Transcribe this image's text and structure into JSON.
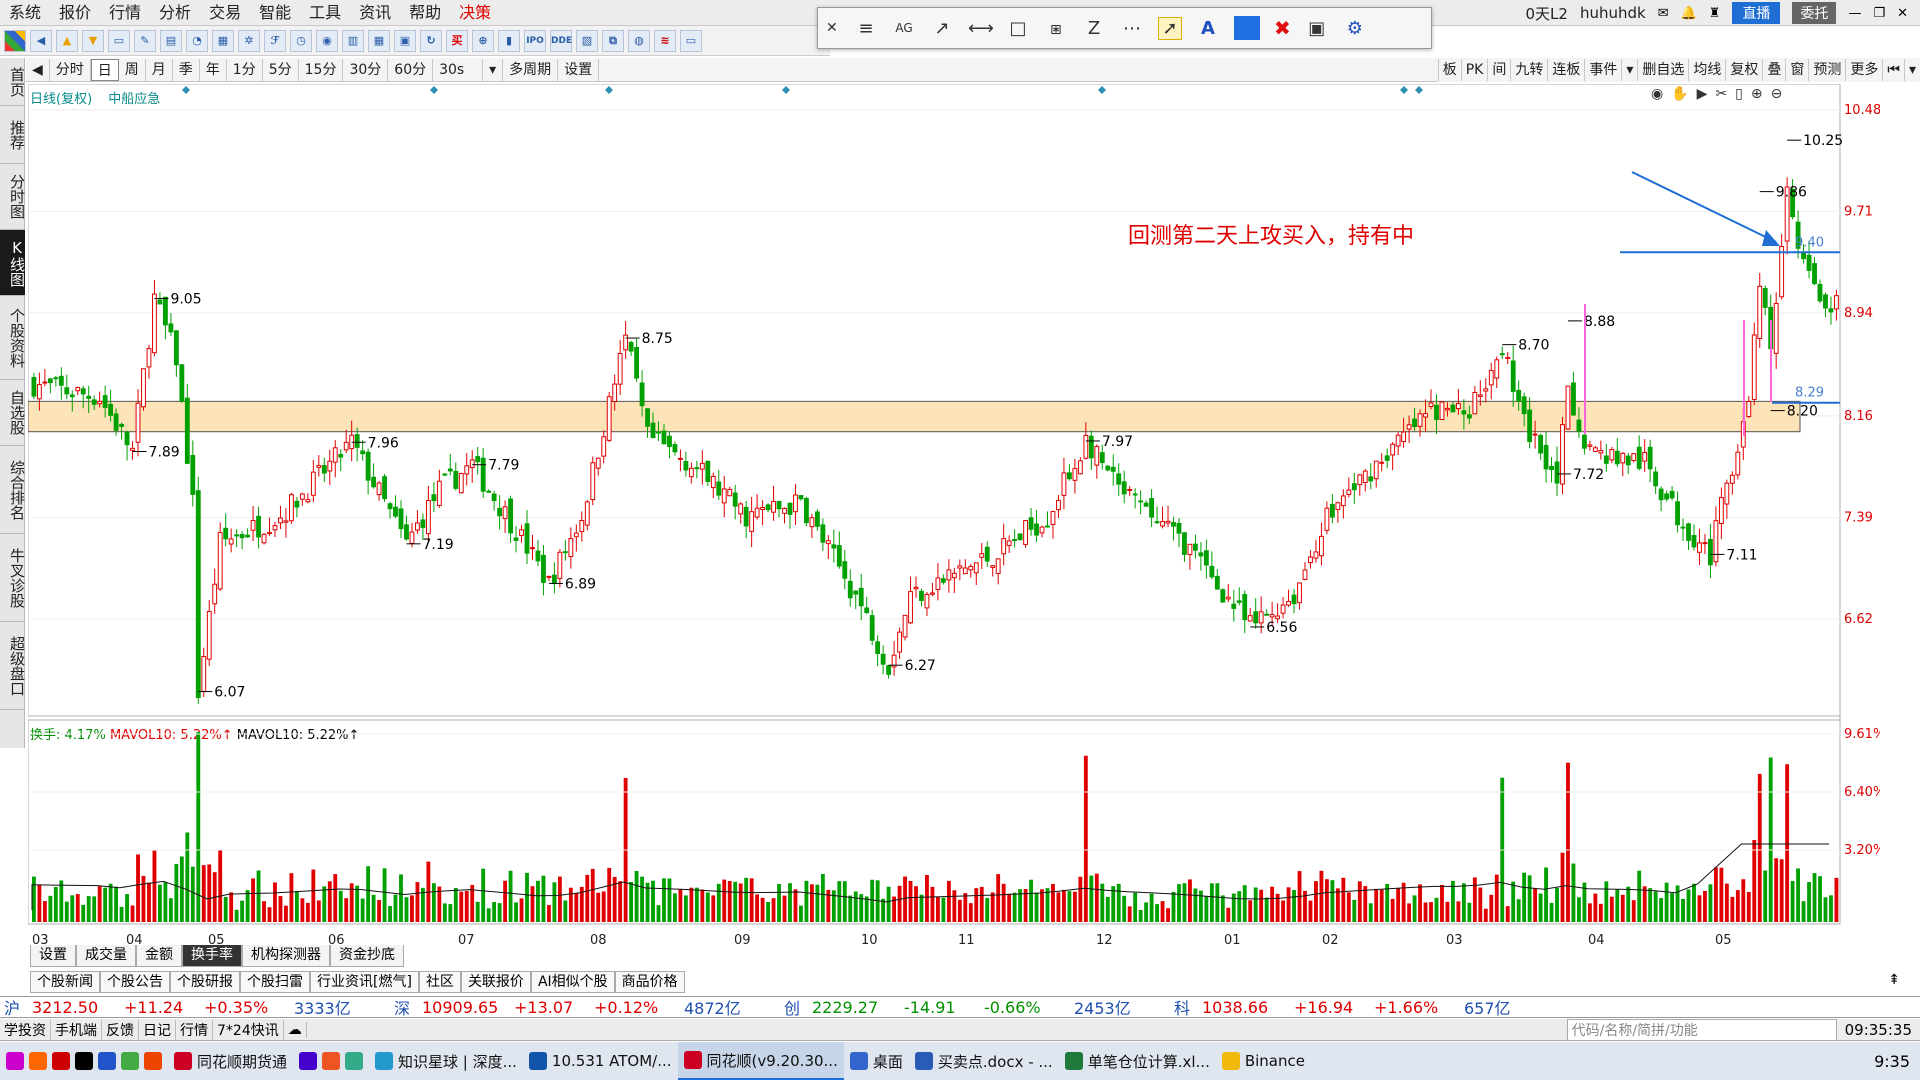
{
  "menu": [
    "系统",
    "报价",
    "行情",
    "分析",
    "交易",
    "智能",
    "工具",
    "资讯",
    "帮助",
    "决策"
  ],
  "topright": {
    "l2": "0天L2",
    "user": "huhuhdk",
    "live": "直播",
    "delegate": "委托"
  },
  "toolbar_icons": [
    "IPO",
    "DDE",
    "买"
  ],
  "drawbar": {
    "tools": [
      "≡",
      "AG",
      "↗",
      "⟷",
      "□",
      "⧆",
      "Z",
      "⋯"
    ],
    "text_tool": "A",
    "delete": "✖"
  },
  "periods": [
    "分时",
    "日",
    "周",
    "月",
    "季",
    "年",
    "1分",
    "5分",
    "15分",
    "30分",
    "60分",
    "30s",
    "多周期",
    "设置"
  ],
  "active_period": "日",
  "rightbar": [
    "板",
    "PK",
    "间",
    "九转",
    "连板",
    "事件",
    "删自选",
    "均线",
    "复权",
    "叠",
    "窗",
    "预测",
    "更多"
  ],
  "leftnav": [
    "首页",
    "推荐",
    "分时图",
    "K线图",
    "个股资料",
    "自选股",
    "综合排名",
    "牛叉诊股",
    "超级盘口"
  ],
  "legend": {
    "mode": "日线(复权)",
    "name": "中船应急"
  },
  "vol_legend": {
    "turnover": "换手: 4.17%",
    "mavol1": "MAVOL10: 5.22%↑",
    "mavol2": "MAVOL10: 5.22%↑"
  },
  "annotation": "回测第二天上攻买入，持有中",
  "price_axis": [
    "10.48",
    "9.71",
    "8.94",
    "8.16",
    "7.39",
    "6.62"
  ],
  "vol_axis": [
    "9.61%",
    "6.40%",
    "3.20%"
  ],
  "month_labels": [
    "03",
    "04",
    "05",
    "06",
    "07",
    "08",
    "09",
    "10",
    "11",
    "12",
    "01",
    "02",
    "03",
    "04",
    "05"
  ],
  "bottom_tabs1": [
    "设置",
    "成交量",
    "金额",
    "换手率",
    "机构探测器",
    "资金抄底"
  ],
  "bottom_tabs1_active": "换手率",
  "bottom_tabs2": [
    "个股新闻",
    "个股公告",
    "个股研报",
    "个股扫雷",
    "行业资讯[燃气]",
    "社区",
    "关联报价",
    "AI相似个股",
    "商品价格"
  ],
  "indices": [
    {
      "name": "沪",
      "val": "3212.50",
      "chg": "+11.24",
      "pct": "+0.35%",
      "amt": "3333亿"
    },
    {
      "name": "深",
      "val": "10909.65",
      "chg": "+13.07",
      "pct": "+0.12%",
      "amt": "4872亿"
    },
    {
      "name": "创",
      "val": "2229.27",
      "chg": "-14.91",
      "pct": "-0.66%",
      "amt": "2453亿"
    },
    {
      "name": "科",
      "val": "1038.66",
      "chg": "+16.94",
      "pct": "+1.66%",
      "amt": "657亿"
    }
  ],
  "statusbar": [
    "学投资",
    "手机端",
    "反馈",
    "日记",
    "行情",
    "7*24快讯"
  ],
  "search_placeholder": "代码/名称/简拼/功能",
  "clock": "09:35:35",
  "taskbar": [
    "同花顺期货通",
    "知识星球 | 深度...",
    "10.531 ATOM/...",
    "同花顺(v9.20.30...",
    "桌面",
    "买卖点.docx - ...",
    "单笔仓位计算.xl...",
    "Binance"
  ],
  "tray_time": "9:35",
  "chart_data": {
    "type": "candlestick",
    "price_range": [
      5.9,
      10.6
    ],
    "labeled_points": [
      {
        "label": "9.05",
        "idx": 22,
        "price": 9.05,
        "kind": "high"
      },
      {
        "label": "7.89",
        "idx": 18,
        "price": 7.89,
        "kind": "low"
      },
      {
        "label": "6.07",
        "idx": 30,
        "price": 6.07,
        "kind": "low"
      },
      {
        "label": "7.96",
        "idx": 58,
        "price": 7.96,
        "kind": "high"
      },
      {
        "label": "7.19",
        "idx": 68,
        "price": 7.19,
        "kind": "low"
      },
      {
        "label": "7.79",
        "idx": 80,
        "price": 7.79,
        "kind": "high"
      },
      {
        "label": "6.89",
        "idx": 94,
        "price": 6.89,
        "kind": "low"
      },
      {
        "label": "8.75",
        "idx": 108,
        "price": 8.75,
        "kind": "high"
      },
      {
        "label": "6.27",
        "idx": 156,
        "price": 6.27,
        "kind": "low"
      },
      {
        "label": "7.97",
        "idx": 192,
        "price": 7.97,
        "kind": "high"
      },
      {
        "label": "6.56",
        "idx": 222,
        "price": 6.56,
        "kind": "low"
      },
      {
        "label": "8.70",
        "idx": 268,
        "price": 8.7,
        "kind": "high"
      },
      {
        "label": "8.88",
        "idx": 280,
        "price": 8.88,
        "kind": "high"
      },
      {
        "label": "7.72",
        "idx": 278,
        "price": 7.72,
        "kind": "low"
      },
      {
        "label": "7.11",
        "idx": 306,
        "price": 7.11,
        "kind": "low"
      },
      {
        "label": "9.86",
        "idx": 315,
        "price": 9.86,
        "kind": "high"
      },
      {
        "label": "10.25",
        "idx": 320,
        "price": 10.25,
        "kind": "high"
      },
      {
        "label": "8.20",
        "idx": 317,
        "price": 8.2,
        "kind": "low"
      }
    ],
    "support_zone": [
      8.04,
      8.27
    ],
    "hline_price": 9.4,
    "hline_price_2": 8.29
  }
}
